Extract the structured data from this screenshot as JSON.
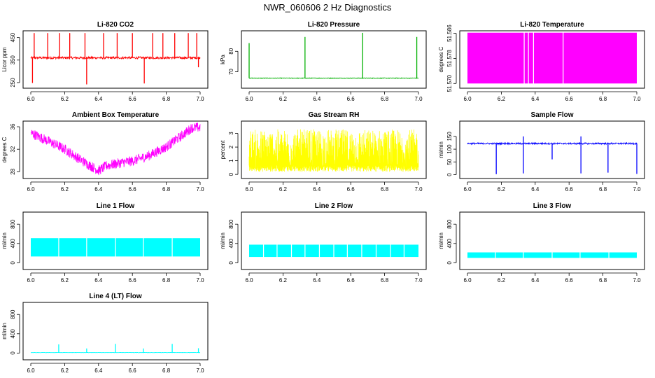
{
  "title": "NWR_060606 2 Hz Diagnostics",
  "chart_data": [
    {
      "id": "co2",
      "type": "line",
      "title": "Li-820 CO2",
      "ylabel": "Licor ppm",
      "color": "#ff0000",
      "xlim": [
        6.0,
        7.0
      ],
      "ylim": [
        225,
        480
      ],
      "x_ticks": [
        "6.0",
        "6.2",
        "6.4",
        "6.6",
        "6.8",
        "7.0"
      ],
      "y_ticks": [
        {
          "value": 250,
          "label": "250"
        },
        {
          "value": 350,
          "label": "350"
        },
        {
          "value": 450,
          "label": "450"
        }
      ],
      "base": 360,
      "noise": 5,
      "spikes_up": [
        {
          "x": 6.02,
          "y": 470
        },
        {
          "x": 6.1,
          "y": 470
        },
        {
          "x": 6.17,
          "y": 470
        },
        {
          "x": 6.23,
          "y": 470
        },
        {
          "x": 6.32,
          "y": 470
        },
        {
          "x": 6.43,
          "y": 470
        },
        {
          "x": 6.51,
          "y": 470
        },
        {
          "x": 6.6,
          "y": 470
        },
        {
          "x": 6.72,
          "y": 470
        },
        {
          "x": 6.78,
          "y": 470
        },
        {
          "x": 6.85,
          "y": 470
        },
        {
          "x": 6.93,
          "y": 470
        },
        {
          "x": 6.98,
          "y": 470
        }
      ],
      "spikes_down": [
        {
          "x": 6.01,
          "y": 248
        },
        {
          "x": 6.33,
          "y": 242
        },
        {
          "x": 6.67,
          "y": 246
        },
        {
          "x": 6.99,
          "y": 318
        }
      ]
    },
    {
      "id": "pressure",
      "type": "line",
      "title": "Li-820 Pressure",
      "ylabel": "kPa",
      "color": "#00b000",
      "xlim": [
        6.0,
        7.0
      ],
      "ylim": [
        62,
        90
      ],
      "x_ticks": [
        "6.0",
        "6.2",
        "6.4",
        "6.6",
        "6.8",
        "7.0"
      ],
      "y_ticks": [
        {
          "value": 70,
          "label": "70"
        },
        {
          "value": 80,
          "label": "80"
        }
      ],
      "base": 66.9,
      "noise": 0.15,
      "spikes_up": [
        {
          "x": 6.0,
          "y": 84
        },
        {
          "x": 6.33,
          "y": 87
        },
        {
          "x": 6.67,
          "y": 89
        },
        {
          "x": 6.99,
          "y": 87
        }
      ],
      "spikes_down": []
    },
    {
      "id": "licor_temp",
      "type": "line",
      "title": "Li-820 Temperature",
      "ylabel": "degrees C",
      "color": "#ff00ff",
      "xlim": [
        6.0,
        7.0
      ],
      "ylim": [
        51.5685,
        51.5868
      ],
      "x_ticks": [
        "6.0",
        "6.2",
        "6.4",
        "6.6",
        "6.8",
        "7.0"
      ],
      "y_ticks": [
        {
          "value": 51.57,
          "label": "51.570"
        },
        {
          "value": 51.578,
          "label": "51.578"
        },
        {
          "value": 51.586,
          "label": "51.586"
        }
      ],
      "band": [
        51.57,
        51.5862
      ],
      "gaps": [
        6.335,
        6.36,
        6.39,
        6.565
      ]
    },
    {
      "id": "ambient_temp",
      "type": "line",
      "title": "Ambient Box Temperature",
      "ylabel": "degrees C",
      "color": "#ff00ff",
      "xlim": [
        6.0,
        7.0
      ],
      "ylim": [
        26.8,
        37
      ],
      "x_ticks": [
        "6.0",
        "6.2",
        "6.4",
        "6.6",
        "6.8",
        "7.0"
      ],
      "y_ticks": [
        {
          "value": 28,
          "label": "28"
        },
        {
          "value": 32,
          "label": "32"
        },
        {
          "value": 36,
          "label": "36"
        }
      ],
      "curve": [
        [
          6.0,
          34.9
        ],
        [
          6.1,
          33.5
        ],
        [
          6.2,
          32.0
        ],
        [
          6.3,
          30.0
        ],
        [
          6.4,
          28.2
        ],
        [
          6.45,
          29.1
        ],
        [
          6.55,
          29.7
        ],
        [
          6.6,
          29.9
        ],
        [
          6.7,
          30.9
        ],
        [
          6.8,
          32.4
        ],
        [
          6.9,
          34.6
        ],
        [
          6.95,
          35.8
        ],
        [
          7.0,
          35.9
        ]
      ],
      "noise": 0.9
    },
    {
      "id": "rh",
      "type": "line",
      "title": "Gas Stream RH",
      "ylabel": "percent",
      "color": "#ffff00",
      "xlim": [
        6.0,
        7.0
      ],
      "ylim": [
        -0.3,
        3.9
      ],
      "x_ticks": [
        "6.0",
        "6.2",
        "6.4",
        "6.6",
        "6.8",
        "7.0"
      ],
      "y_ticks": [
        {
          "value": 0,
          "label": "0"
        },
        {
          "value": 1,
          "label": "1"
        },
        {
          "value": 2,
          "label": "2"
        },
        {
          "value": 3,
          "label": "3"
        }
      ],
      "band": [
        0.2,
        3.3
      ]
    },
    {
      "id": "sample_flow",
      "type": "line",
      "title": "Sample Flow",
      "ylabel": "ml/min",
      "color": "#0000ff",
      "xlim": [
        6.0,
        7.0
      ],
      "ylim": [
        -15,
        210
      ],
      "x_ticks": [
        "6.0",
        "6.2",
        "6.4",
        "6.6",
        "6.8",
        "7.0"
      ],
      "y_ticks": [
        {
          "value": 0,
          "label": "0"
        },
        {
          "value": 50,
          "label": "50"
        },
        {
          "value": 100,
          "label": "100"
        },
        {
          "value": 150,
          "label": "150"
        }
      ],
      "base": 122,
      "noise": 3,
      "spikes_up": [
        {
          "x": 6.33,
          "y": 150
        },
        {
          "x": 6.67,
          "y": 150
        }
      ],
      "spikes_down": [
        {
          "x": 6.17,
          "y": 2
        },
        {
          "x": 6.33,
          "y": 5
        },
        {
          "x": 6.5,
          "y": 60
        },
        {
          "x": 6.67,
          "y": 5
        },
        {
          "x": 6.83,
          "y": 8
        },
        {
          "x": 7.0,
          "y": 3
        }
      ]
    },
    {
      "id": "line1",
      "type": "line",
      "title": "Line 1 Flow",
      "ylabel": "ml/min",
      "color": "#00ffff",
      "xlim": [
        6.0,
        7.0
      ],
      "ylim": [
        -140,
        1050
      ],
      "x_ticks": [
        "6.0",
        "6.2",
        "6.4",
        "6.6",
        "6.8",
        "7.0"
      ],
      "y_ticks": [
        {
          "value": 0,
          "label": "0"
        },
        {
          "value": 400,
          "label": "400"
        },
        {
          "value": 800,
          "label": "800"
        }
      ],
      "band": [
        130,
        510
      ],
      "gaps": [
        6.165,
        6.33,
        6.5,
        6.665,
        6.835
      ]
    },
    {
      "id": "line2",
      "type": "line",
      "title": "Line 2 Flow",
      "ylabel": "ml/min",
      "color": "#00ffff",
      "xlim": [
        6.0,
        7.0
      ],
      "ylim": [
        -140,
        1050
      ],
      "x_ticks": [
        "6.0",
        "6.2",
        "6.4",
        "6.6",
        "6.8",
        "7.0"
      ],
      "y_ticks": [
        {
          "value": 0,
          "label": "0"
        },
        {
          "value": 400,
          "label": "400"
        },
        {
          "value": 800,
          "label": "800"
        }
      ],
      "band": [
        120,
        375
      ],
      "gaps": [
        6.085,
        6.165,
        6.25,
        6.33,
        6.415,
        6.5,
        6.58,
        6.665,
        6.75,
        6.835,
        6.915
      ]
    },
    {
      "id": "line3",
      "type": "line",
      "title": "Line 3 Flow",
      "ylabel": "ml/min",
      "color": "#00ffff",
      "xlim": [
        6.0,
        7.0
      ],
      "ylim": [
        -140,
        1050
      ],
      "x_ticks": [
        "6.0",
        "6.2",
        "6.4",
        "6.6",
        "6.8",
        "7.0"
      ],
      "y_ticks": [
        {
          "value": 0,
          "label": "0"
        },
        {
          "value": 400,
          "label": "400"
        },
        {
          "value": 800,
          "label": "800"
        }
      ],
      "band": [
        100,
        215
      ],
      "gaps": [
        6.165,
        6.33,
        6.5,
        6.665,
        6.835
      ]
    },
    {
      "id": "line4",
      "type": "line",
      "title": "Line 4 (LT) Flow",
      "ylabel": "ml/min",
      "color": "#00ffff",
      "xlim": [
        6.0,
        7.0
      ],
      "ylim": [
        -140,
        1050
      ],
      "x_ticks": [
        "6.0",
        "6.2",
        "6.4",
        "6.6",
        "6.8",
        "7.0"
      ],
      "y_ticks": [
        {
          "value": 0,
          "label": "0"
        },
        {
          "value": 400,
          "label": "400"
        },
        {
          "value": 800,
          "label": "800"
        }
      ],
      "base": 10,
      "noise": 3,
      "spikes_up": [
        {
          "x": 6.165,
          "y": 180
        },
        {
          "x": 6.33,
          "y": 95
        },
        {
          "x": 6.5,
          "y": 190
        },
        {
          "x": 6.665,
          "y": 95
        },
        {
          "x": 6.835,
          "y": 190
        },
        {
          "x": 6.99,
          "y": 100
        }
      ],
      "spikes_down": []
    }
  ]
}
